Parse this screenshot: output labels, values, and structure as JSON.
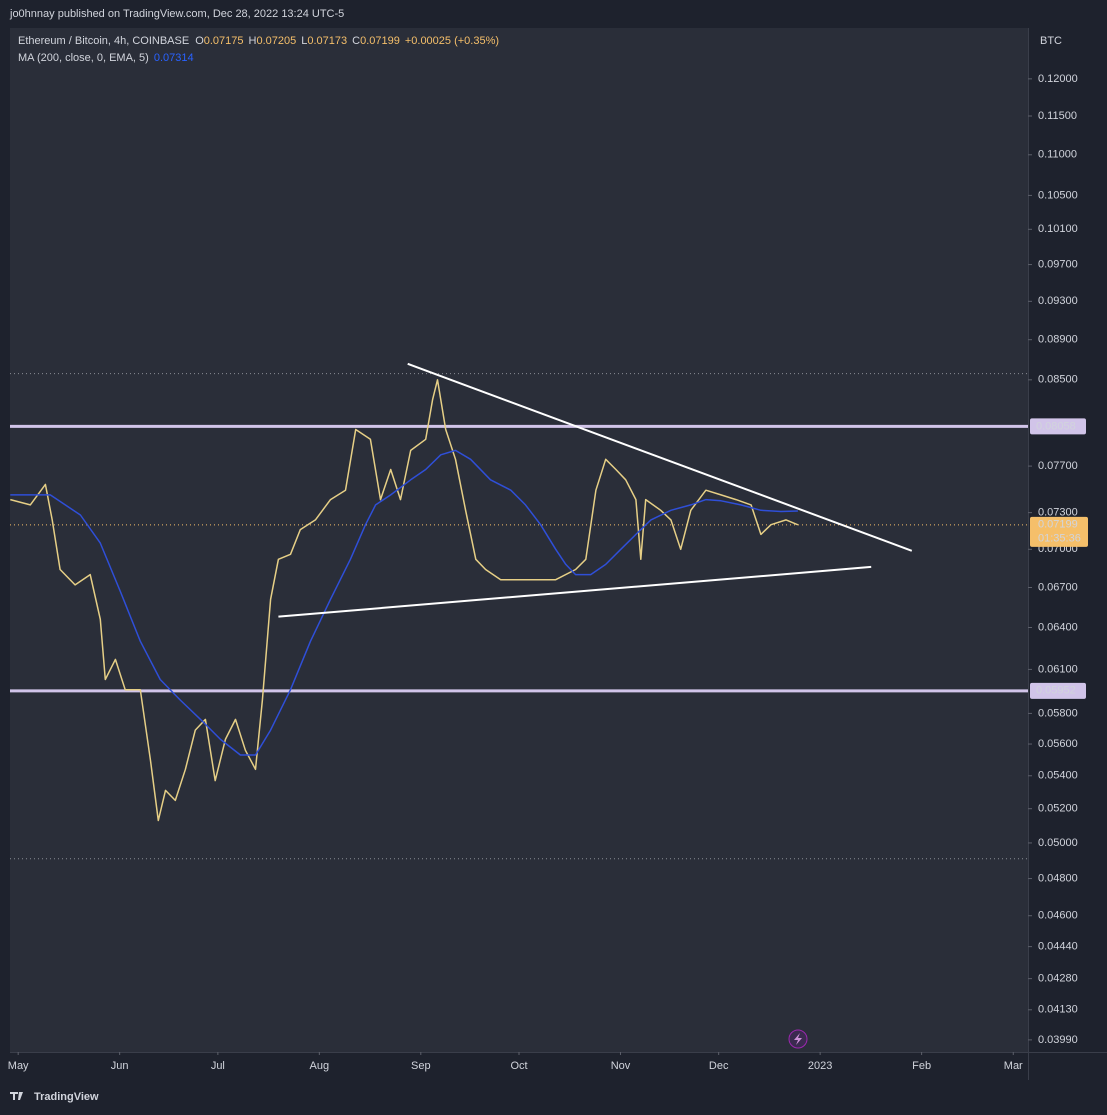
{
  "header": {
    "publisher": "jo0hnnay published on TradingView.com, Dec 28, 2022 13:24 UTC-5"
  },
  "footer": {
    "brand": "TradingView"
  },
  "chart_data": {
    "type": "line",
    "symbol": "Ethereum / Bitcoin, 4h, COINBASE",
    "ohlc": [
      {
        "key": "O",
        "value": 0.07175
      },
      {
        "key": "H",
        "value": 0.07205
      },
      {
        "key": "L",
        "value": 0.07173
      },
      {
        "key": "C",
        "value": 0.07199
      }
    ],
    "change": "+0.00025 (+0.35%)",
    "indicator": "MA (200, close, 0, EMA, 5)",
    "indicator_value": 0.07314,
    "y_unit": "BTC",
    "log_scale": true,
    "grid": false,
    "xlim": [
      -2.5,
      308.5
    ],
    "xticks": [
      {
        "value": 0,
        "label": "May"
      },
      {
        "value": 31,
        "label": "Jun"
      },
      {
        "value": 61,
        "label": "Jul"
      },
      {
        "value": 92,
        "label": "Aug"
      },
      {
        "value": 123,
        "label": "Sep"
      },
      {
        "value": 153,
        "label": "Oct"
      },
      {
        "value": 184,
        "label": "Nov"
      },
      {
        "value": 214,
        "label": "Dec"
      },
      {
        "value": 245,
        "label": "2023"
      },
      {
        "value": 276,
        "label": "Feb"
      },
      {
        "value": 304,
        "label": "Mar"
      }
    ],
    "ylim": [
      0.03935,
      0.1272
    ],
    "yticks": [
      {
        "value": 0.12,
        "label": "0.12000"
      },
      {
        "value": 0.115,
        "label": "0.11500"
      },
      {
        "value": 0.11,
        "label": "0.11000"
      },
      {
        "value": 0.105,
        "label": "0.10500"
      },
      {
        "value": 0.101,
        "label": "0.10100"
      },
      {
        "value": 0.097,
        "label": "0.09700"
      },
      {
        "value": 0.093,
        "label": "0.09300"
      },
      {
        "value": 0.089,
        "label": "0.08900"
      },
      {
        "value": 0.085,
        "label": "0.08500"
      },
      {
        "value": 0.077,
        "label": "0.07700"
      },
      {
        "value": 0.073,
        "label": "0.07300"
      },
      {
        "value": 0.07,
        "label": "0.07000"
      },
      {
        "value": 0.067,
        "label": "0.06700"
      },
      {
        "value": 0.064,
        "label": "0.06400"
      },
      {
        "value": 0.061,
        "label": "0.06100"
      },
      {
        "value": 0.058,
        "label": "0.05800"
      },
      {
        "value": 0.056,
        "label": "0.05600"
      },
      {
        "value": 0.054,
        "label": "0.05400"
      },
      {
        "value": 0.052,
        "label": "0.05200"
      },
      {
        "value": 0.05,
        "label": "0.05000"
      },
      {
        "value": 0.048,
        "label": "0.04800"
      },
      {
        "value": 0.046,
        "label": "0.04600"
      },
      {
        "value": 0.0444,
        "label": "0.04440"
      },
      {
        "value": 0.0428,
        "label": "0.04280"
      },
      {
        "value": 0.0413,
        "label": "0.04130"
      },
      {
        "value": 0.0399,
        "label": "0.03990"
      }
    ],
    "series": [
      {
        "color": "#e6cf86",
        "width": 1.5,
        "x": [
          -2.4,
          3.7,
          8.3,
          10.4,
          12.8,
          17.4,
          22.0,
          25.1,
          26.6,
          29.7,
          32.7,
          37.3,
          40.4,
          42.8,
          45.0,
          48.0,
          51.1,
          54.1,
          57.2,
          60.2,
          63.3,
          66.4,
          69.4,
          72.5,
          74.6,
          77.1,
          79.5,
          83.2,
          86.2,
          90.8,
          95.4,
          100.0,
          103.1,
          107.6,
          110.7,
          113.8,
          116.8,
          119.9,
          124.5,
          126.6,
          128.1,
          130.6,
          133.6,
          136.7,
          139.8,
          142.8,
          147.4,
          153.5,
          159.6,
          164.2,
          170.3,
          173.4,
          176.5,
          179.5,
          182.6,
          185.6,
          188.7,
          190.2,
          191.7,
          196.3,
          199.4,
          202.4,
          205.5,
          210.1,
          214.7,
          219.3,
          223.9,
          226.9,
          230.0,
          234.6,
          238.2
        ],
        "values": [
          0.0741,
          0.07365,
          0.0754,
          0.0724,
          0.0684,
          0.0672,
          0.068,
          0.0646,
          0.0603,
          0.0617,
          0.0596,
          0.0596,
          0.055,
          0.0513,
          0.0531,
          0.0525,
          0.0544,
          0.0569,
          0.0576,
          0.0537,
          0.0563,
          0.0576,
          0.0556,
          0.0544,
          0.0589,
          0.0661,
          0.0692,
          0.0696,
          0.0716,
          0.0724,
          0.0741,
          0.0749,
          0.0803,
          0.0794,
          0.0741,
          0.0767,
          0.0741,
          0.0784,
          0.0794,
          0.0831,
          0.085,
          0.0803,
          0.0776,
          0.0732,
          0.0692,
          0.0684,
          0.0676,
          0.0676,
          0.0676,
          0.0676,
          0.0684,
          0.0692,
          0.0749,
          0.0776,
          0.0767,
          0.0758,
          0.0741,
          0.0692,
          0.0741,
          0.0732,
          0.0724,
          0.07,
          0.0732,
          0.0749,
          0.0745,
          0.0741,
          0.07365,
          0.0712,
          0.072,
          0.0724,
          0.07199
        ]
      },
      {
        "color": "#2f4fd8",
        "width": 1.5,
        "x": [
          -2.4,
          9.8,
          19.0,
          25.1,
          31.2,
          37.3,
          43.4,
          49.5,
          55.7,
          61.8,
          67.9,
          72.5,
          77.1,
          83.2,
          89.3,
          95.4,
          101.5,
          106.1,
          109.2,
          113.8,
          119.9,
          124.5,
          129.1,
          133.6,
          138.2,
          144.3,
          150.5,
          155.0,
          159.6,
          164.2,
          167.3,
          170.3,
          174.9,
          179.5,
          184.1,
          188.7,
          193.3,
          199.4,
          205.5,
          210.1,
          214.7,
          220.8,
          226.9,
          233.0,
          238.2
        ],
        "values": [
          0.0745,
          0.0745,
          0.0728,
          0.0705,
          0.0667,
          0.063,
          0.0603,
          0.0589,
          0.0576,
          0.0563,
          0.0553,
          0.0553,
          0.0569,
          0.0596,
          0.063,
          0.0661,
          0.0692,
          0.072,
          0.07365,
          0.0745,
          0.0758,
          0.0767,
          0.078,
          0.0784,
          0.0776,
          0.0758,
          0.0749,
          0.07365,
          0.072,
          0.07,
          0.0688,
          0.068,
          0.068,
          0.0688,
          0.07,
          0.0712,
          0.0724,
          0.0732,
          0.07365,
          0.0741,
          0.074,
          0.07365,
          0.0732,
          0.0731,
          0.07314
        ]
      }
    ],
    "levels": [
      {
        "value": 0.08058,
        "color": "#d1c4e9"
      },
      {
        "value": 0.05952,
        "color": "#d1c4e9"
      }
    ],
    "dotted_levels": [
      0.0856,
      0.0491
    ],
    "trendlines": [
      {
        "x": [
          119.0,
          273.0
        ],
        "values": [
          0.08657,
          0.06988
        ],
        "color": "#ffffff"
      },
      {
        "x": [
          79.5,
          260.6
        ],
        "values": [
          0.0648,
          0.0686
        ],
        "color": "#ffffff"
      }
    ],
    "last_price": 0.07199,
    "last_price_color": "#f5bf6a",
    "countdown": "01:35:36"
  }
}
